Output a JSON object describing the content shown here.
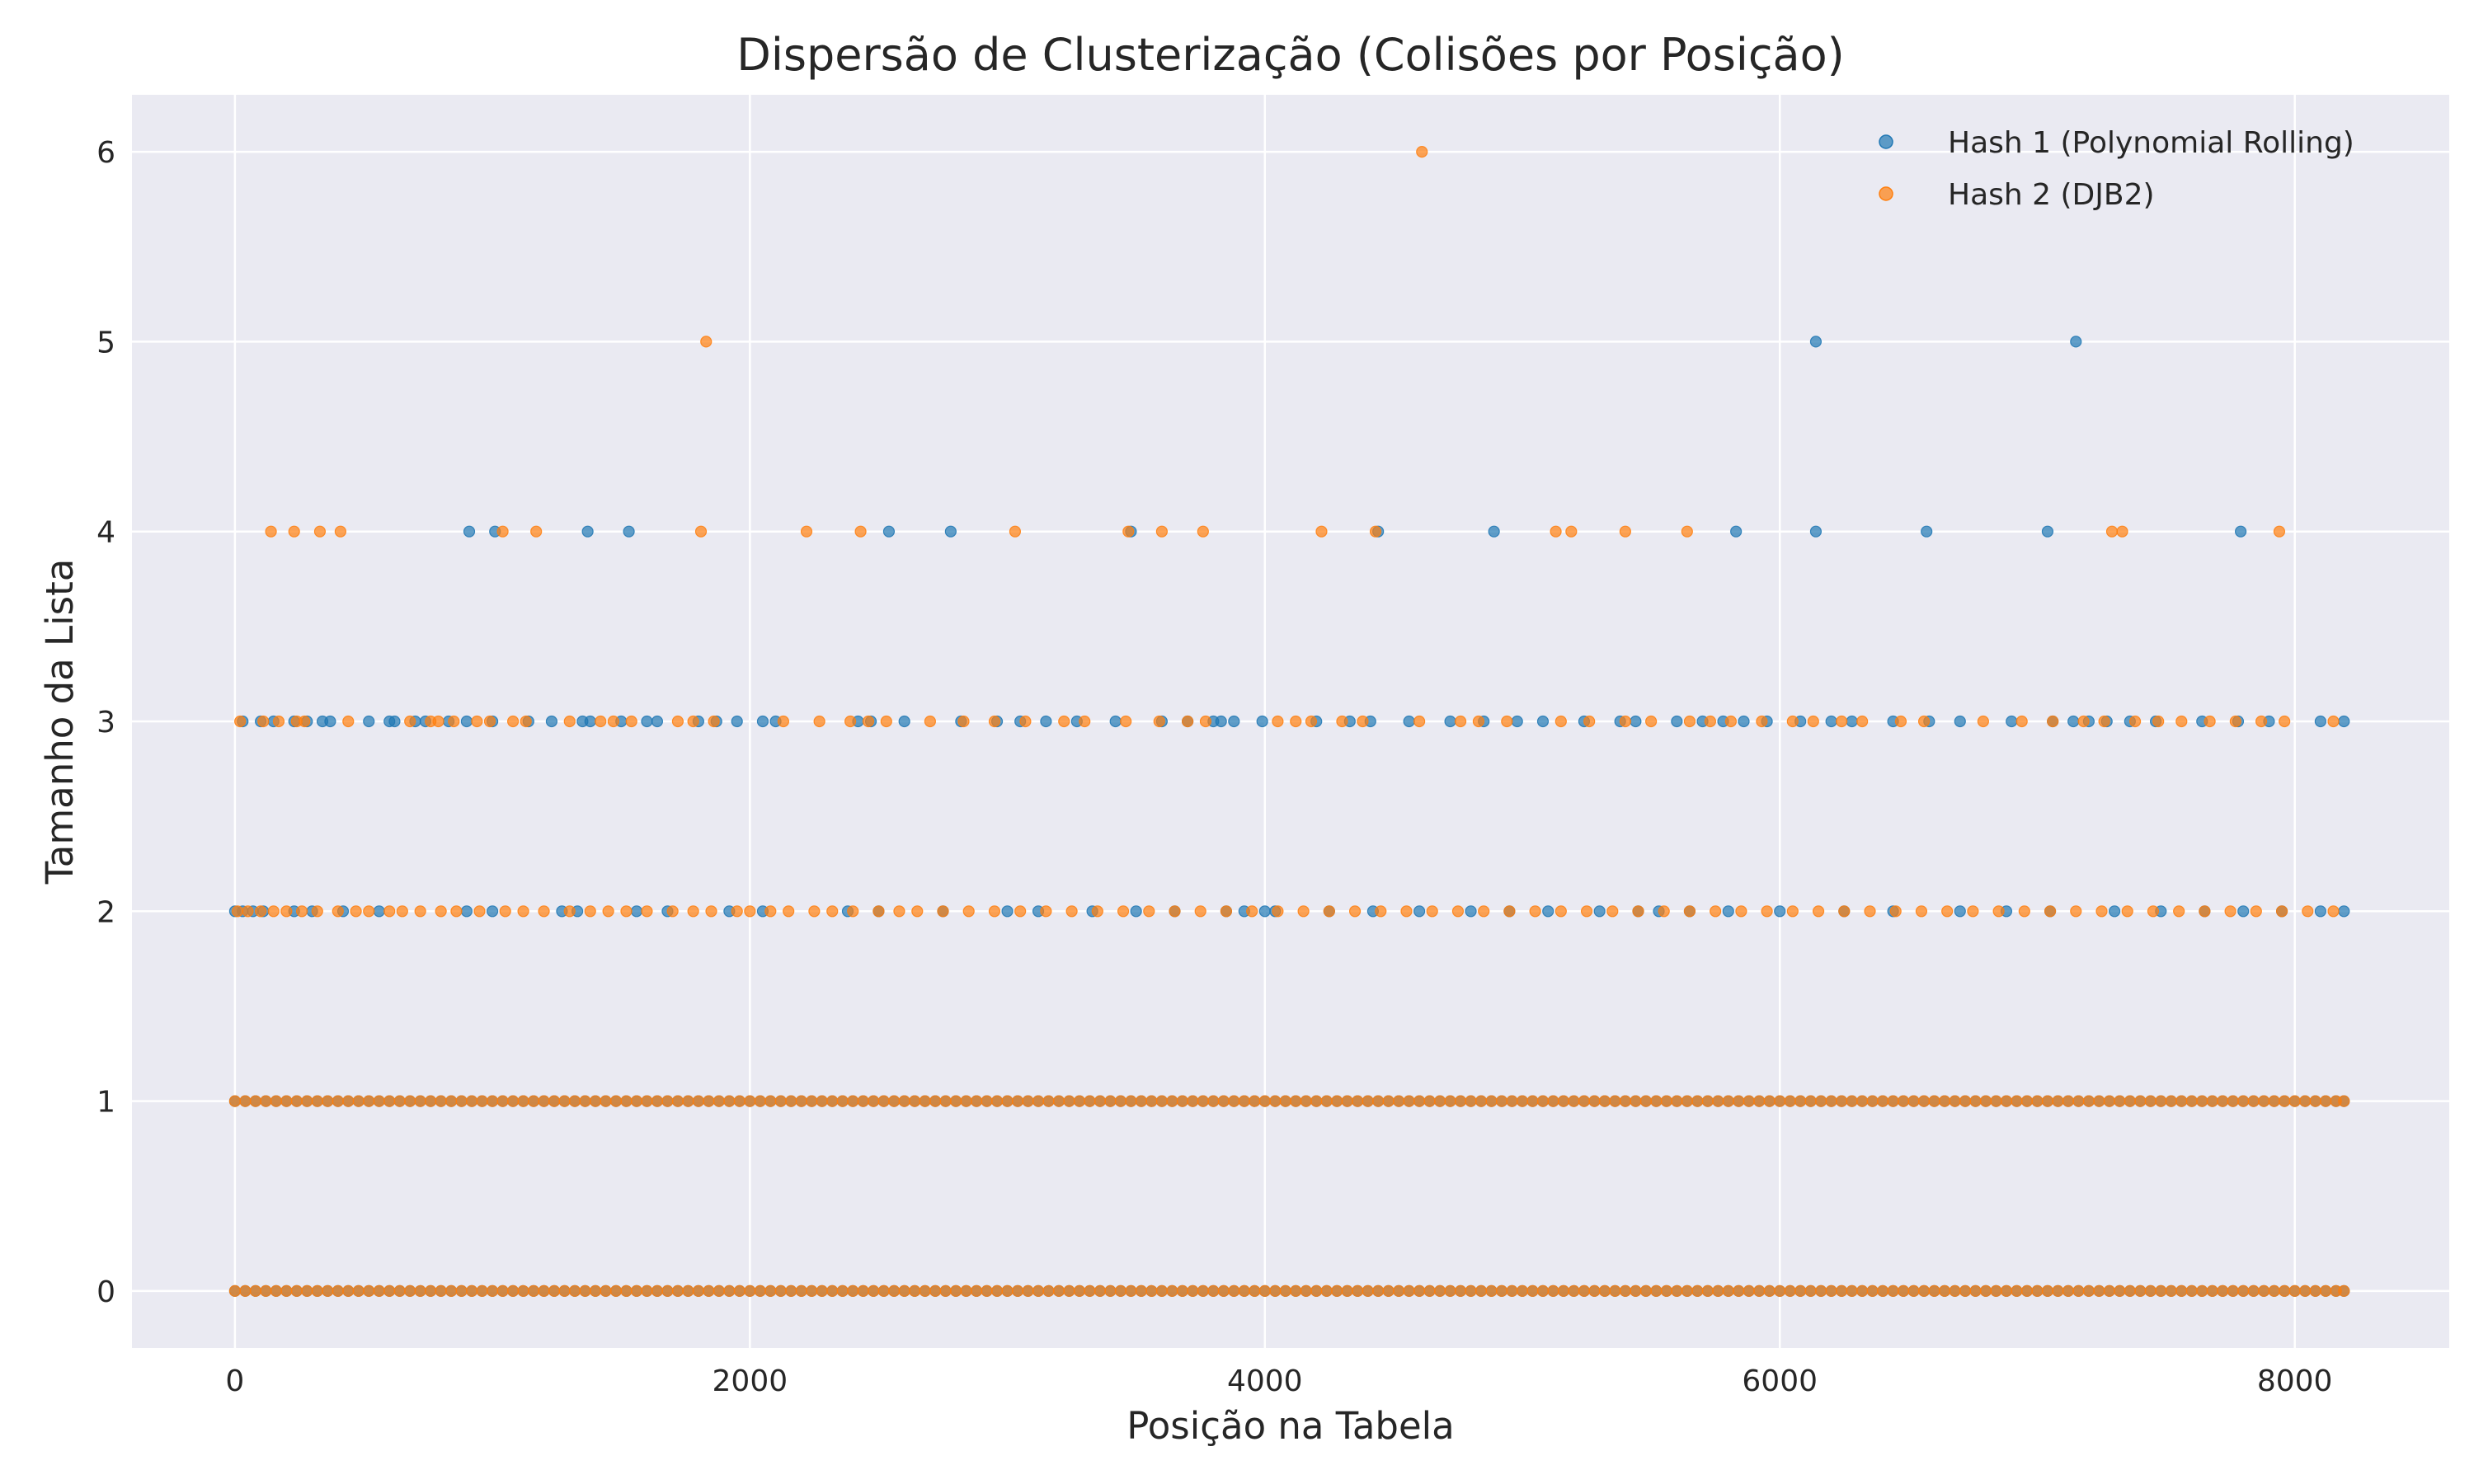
{
  "chart_data": {
    "type": "scatter",
    "title": "Dispersão de Clusterização (Colisões por Posição)",
    "xlabel": "Posição na Tabela",
    "ylabel": "Tamanho da Lista",
    "xlim": [
      -400,
      8600
    ],
    "ylim": [
      -0.3,
      6.3
    ],
    "xticks": [
      0,
      2000,
      4000,
      6000,
      8000
    ],
    "yticks": [
      0,
      1,
      2,
      3,
      4,
      5,
      6
    ],
    "x_range": [
      0,
      8191
    ],
    "grid": true,
    "legend_position": "top-right",
    "series": [
      {
        "name": "Hash 1 (Polynomial Rolling)",
        "color": "#1f77b4",
        "dense_levels": [
          0,
          1
        ],
        "level2_x": [
          0,
          30,
          70,
          110,
          230,
          300,
          420,
          560,
          900,
          1000,
          1270,
          1330,
          1560,
          1680,
          1920,
          2050,
          2380,
          2500,
          2750,
          3000,
          3120,
          3330,
          3500,
          3650,
          3850,
          3920,
          4000,
          4040,
          4250,
          4420,
          4600,
          4800,
          4950,
          5100,
          5300,
          5450,
          5530,
          5650,
          5800,
          6000,
          6250,
          6440,
          6700,
          6880,
          7050,
          7300,
          7480,
          7650,
          7800,
          7950,
          8100,
          8191
        ],
        "level3_x": [
          30,
          100,
          150,
          230,
          280,
          340,
          370,
          520,
          600,
          620,
          700,
          740,
          830,
          900,
          1000,
          1140,
          1230,
          1350,
          1380,
          1500,
          1600,
          1640,
          1800,
          1870,
          1950,
          2050,
          2100,
          2420,
          2470,
          2600,
          2820,
          2960,
          3050,
          3150,
          3270,
          3420,
          3600,
          3700,
          3800,
          3830,
          3880,
          3990,
          4200,
          4330,
          4410,
          4560,
          4720,
          4850,
          4980,
          5080,
          5240,
          5380,
          5440,
          5600,
          5700,
          5780,
          5860,
          5950,
          6080,
          6200,
          6280,
          6440,
          6580,
          6700,
          6900,
          7060,
          7140,
          7200,
          7270,
          7360,
          7460,
          7640,
          7780,
          7900,
          8100,
          8191
        ],
        "level4_x": [
          910,
          1010,
          1370,
          1530,
          2540,
          2780,
          3480,
          4440,
          4890,
          5830,
          6140,
          6570,
          7040,
          7790
        ],
        "level5_x": [
          6140,
          7150
        ]
      },
      {
        "name": "Hash 2 (DJB2)",
        "color": "#ff7f0e",
        "dense_levels": [
          0,
          1
        ],
        "level2_x": [
          10,
          50,
          100,
          150,
          200,
          260,
          320,
          400,
          470,
          520,
          600,
          650,
          720,
          800,
          860,
          950,
          1050,
          1120,
          1200,
          1300,
          1380,
          1450,
          1520,
          1600,
          1700,
          1780,
          1850,
          1950,
          2000,
          2080,
          2150,
          2250,
          2320,
          2400,
          2500,
          2580,
          2650,
          2750,
          2850,
          2950,
          3050,
          3150,
          3250,
          3350,
          3450,
          3550,
          3650,
          3750,
          3850,
          3950,
          4050,
          4150,
          4250,
          4350,
          4450,
          4550,
          4650,
          4750,
          4850,
          4950,
          5050,
          5150,
          5250,
          5350,
          5450,
          5550,
          5650,
          5750,
          5850,
          5950,
          6050,
          6150,
          6250,
          6350,
          6450,
          6550,
          6650,
          6750,
          6850,
          6950,
          7050,
          7150,
          7250,
          7350,
          7450,
          7550,
          7650,
          7750,
          7850,
          7950,
          8050,
          8150
        ],
        "level3_x": [
          20,
          110,
          170,
          240,
          270,
          440,
          680,
          760,
          790,
          850,
          940,
          990,
          1080,
          1130,
          1300,
          1420,
          1470,
          1540,
          1720,
          1780,
          1860,
          2130,
          2270,
          2390,
          2460,
          2530,
          2700,
          2830,
          2950,
          3070,
          3220,
          3300,
          3460,
          3590,
          3700,
          3770,
          4050,
          4120,
          4180,
          4300,
          4380,
          4600,
          4760,
          4830,
          4940,
          5150,
          5260,
          5400,
          5500,
          5650,
          5730,
          5810,
          5930,
          6050,
          6130,
          6240,
          6320,
          6470,
          6560,
          6790,
          6940,
          7060,
          7180,
          7260,
          7380,
          7470,
          7560,
          7670,
          7770,
          7870,
          7960,
          8150
        ],
        "level4_x": [
          140,
          230,
          330,
          410,
          1040,
          1170,
          1810,
          2220,
          2430,
          3030,
          3470,
          3600,
          3760,
          4220,
          4430,
          5130,
          5190,
          5400,
          5640,
          7290,
          7330,
          7940
        ],
        "level5_x": [
          1830
        ],
        "level6_x": [
          4610
        ]
      }
    ]
  }
}
